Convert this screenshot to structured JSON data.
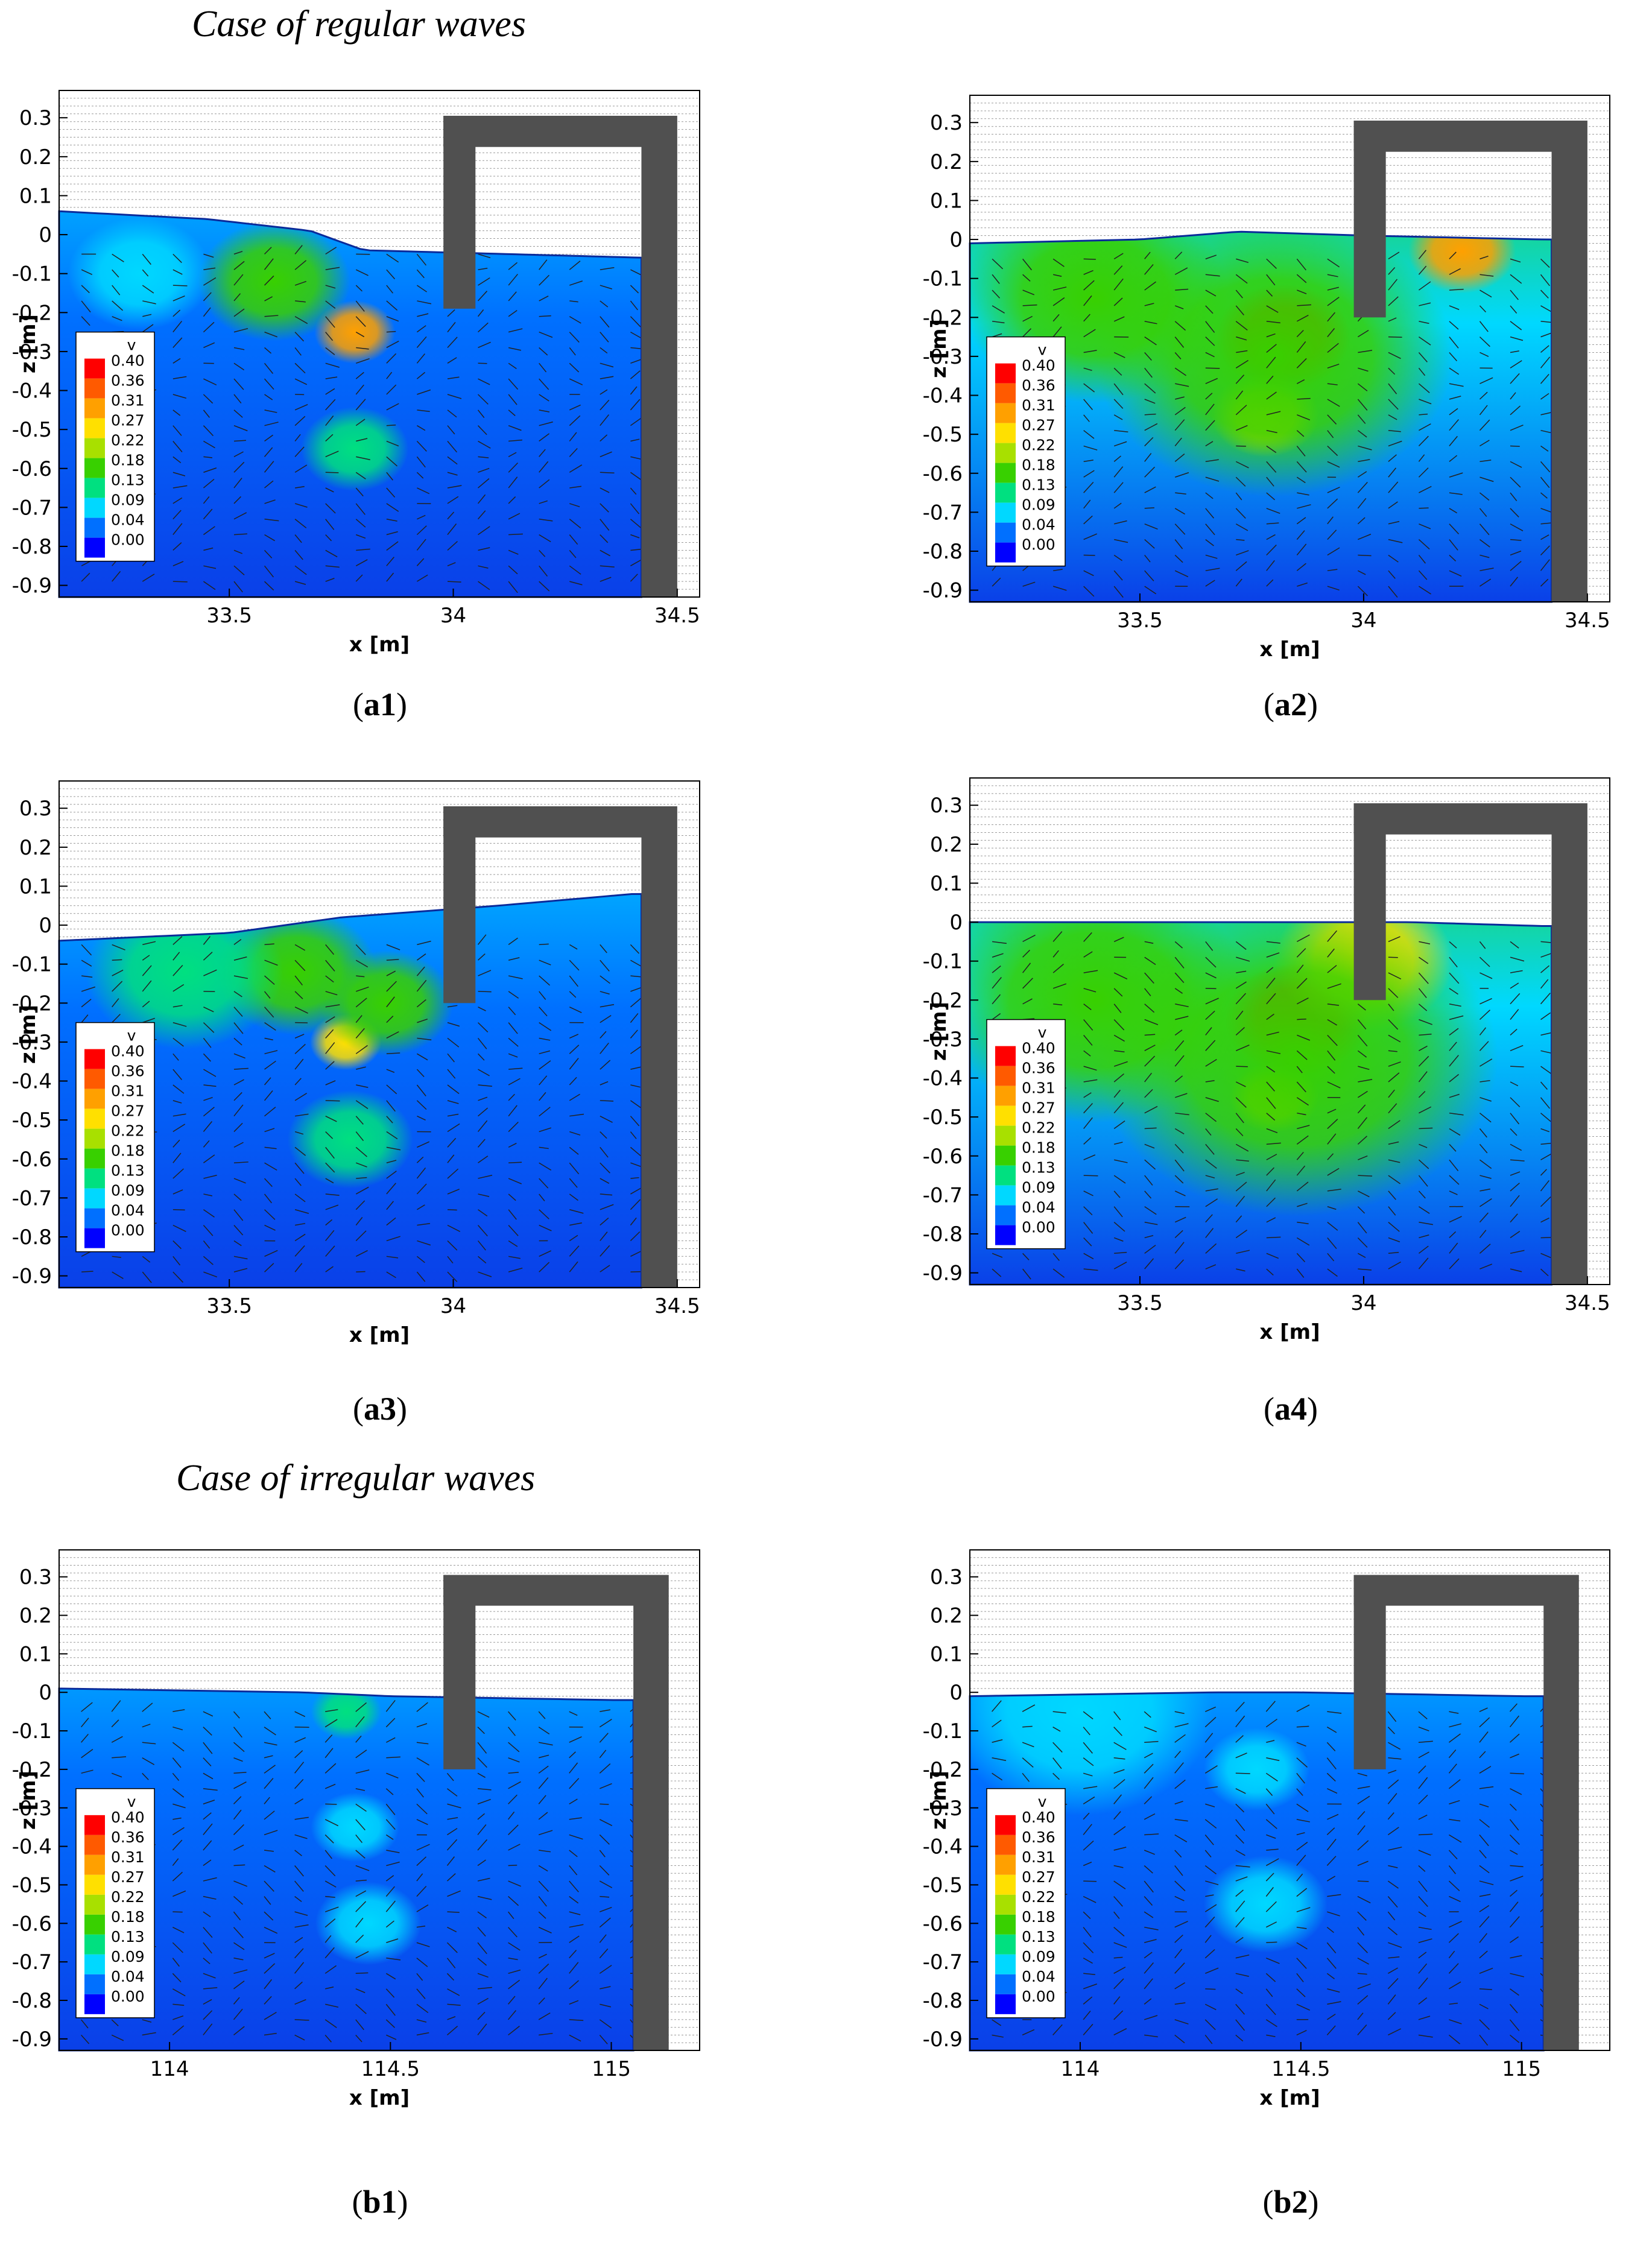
{
  "sections": [
    {
      "title": "Case of regular waves"
    },
    {
      "title": "Case of irregular waves"
    }
  ],
  "legend": {
    "title": "v",
    "levels": [
      "0.40",
      "0.36",
      "0.31",
      "0.27",
      "0.22",
      "0.18",
      "0.13",
      "0.09",
      "0.04",
      "0.00"
    ],
    "colors": [
      "#ff0000",
      "#ff5a00",
      "#ffa000",
      "#ffe000",
      "#a8e000",
      "#38d000",
      "#00e080",
      "#00d8ff",
      "#0070ff",
      "#0000ff"
    ]
  },
  "colors": {
    "structure": "#505050",
    "deep_water": "#0a40e8",
    "grid": "#9a9a9a"
  },
  "panels": [
    {
      "id": "a1",
      "caption_letter": "a",
      "caption_num": "1"
    },
    {
      "id": "a2",
      "caption_letter": "a",
      "caption_num": "2"
    },
    {
      "id": "a3",
      "caption_letter": "a",
      "caption_num": "3"
    },
    {
      "id": "a4",
      "caption_letter": "a",
      "caption_num": "4"
    },
    {
      "id": "b1",
      "caption_letter": "b",
      "caption_num": "1"
    },
    {
      "id": "b2",
      "caption_letter": "b",
      "caption_num": "2"
    }
  ],
  "chart_data": [
    {
      "id": "a1",
      "type": "heatmap",
      "xlabel": "x [m]",
      "ylabel": "z [m]",
      "xlim": [
        33.12,
        34.55
      ],
      "ylim": [
        -0.93,
        0.37
      ],
      "xticks": [
        {
          "v": 33.5,
          "label": "33.5"
        },
        {
          "v": 34,
          "label": "34"
        },
        {
          "v": 34.5,
          "label": "34.5"
        }
      ],
      "yticks": [
        0.3,
        0.2,
        0.1,
        0,
        -0.1,
        -0.2,
        -0.3,
        -0.4,
        -0.5,
        -0.6,
        -0.7,
        -0.8,
        -0.9
      ],
      "surface": [
        [
          33.12,
          0.06
        ],
        [
          33.45,
          0.04
        ],
        [
          33.68,
          0.01
        ],
        [
          33.8,
          -0.04
        ],
        [
          34.45,
          -0.06
        ]
      ],
      "wall_tip": -0.19,
      "back_wall_x": [
        34.42,
        34.5
      ],
      "hotspots": [
        {
          "x": 33.78,
          "z": -0.25,
          "r": 0.09,
          "level": 0.3
        },
        {
          "x": 33.6,
          "z": -0.12,
          "r": 0.17,
          "level": 0.19
        },
        {
          "x": 33.78,
          "z": -0.55,
          "r": 0.12,
          "level": 0.13
        },
        {
          "x": 33.3,
          "z": -0.1,
          "r": 0.16,
          "level": 0.11
        }
      ]
    },
    {
      "id": "a2",
      "type": "heatmap",
      "xlabel": "x [m]",
      "ylabel": "z [m]",
      "xlim": [
        33.12,
        34.55
      ],
      "ylim": [
        -0.93,
        0.37
      ],
      "xticks": [
        {
          "v": 33.5,
          "label": "33.5"
        },
        {
          "v": 34,
          "label": "34"
        },
        {
          "v": 34.5,
          "label": "34.5"
        }
      ],
      "yticks": [
        0.3,
        0.2,
        0.1,
        0,
        -0.1,
        -0.2,
        -0.3,
        -0.4,
        -0.5,
        -0.6,
        -0.7,
        -0.8,
        -0.9
      ],
      "surface": [
        [
          33.12,
          -0.01
        ],
        [
          33.5,
          0.0
        ],
        [
          33.72,
          0.02
        ],
        [
          34.0,
          0.01
        ],
        [
          34.4,
          0.0
        ]
      ],
      "wall_tip": -0.2,
      "back_wall_x": [
        34.42,
        34.5
      ],
      "hotspots": [
        {
          "x": 33.82,
          "z": -0.25,
          "r": 0.15,
          "level": 0.4
        },
        {
          "x": 34.22,
          "z": -0.03,
          "r": 0.12,
          "level": 0.3
        },
        {
          "x": 33.78,
          "z": -0.45,
          "r": 0.12,
          "level": 0.26
        },
        {
          "x": 33.8,
          "z": -0.3,
          "r": 0.4,
          "level": 0.18
        },
        {
          "x": 33.4,
          "z": -0.15,
          "r": 0.3,
          "level": 0.17
        }
      ]
    },
    {
      "id": "a3",
      "type": "heatmap",
      "xlabel": "x [m]",
      "ylabel": "z [m]",
      "xlim": [
        33.12,
        34.55
      ],
      "ylim": [
        -0.93,
        0.37
      ],
      "xticks": [
        {
          "v": 33.5,
          "label": "33.5"
        },
        {
          "v": 34,
          "label": "34"
        },
        {
          "v": 34.5,
          "label": "34.5"
        }
      ],
      "yticks": [
        0.3,
        0.2,
        0.1,
        0,
        -0.1,
        -0.2,
        -0.3,
        -0.4,
        -0.5,
        -0.6,
        -0.7,
        -0.8,
        -0.9
      ],
      "surface": [
        [
          33.12,
          -0.04
        ],
        [
          33.5,
          -0.02
        ],
        [
          33.75,
          0.02
        ],
        [
          34.1,
          0.05
        ],
        [
          34.4,
          0.08
        ]
      ],
      "wall_tip": -0.2,
      "back_wall_x": [
        34.42,
        34.5
      ],
      "hotspots": [
        {
          "x": 33.76,
          "z": -0.3,
          "r": 0.08,
          "level": 0.28
        },
        {
          "x": 33.65,
          "z": -0.12,
          "r": 0.18,
          "level": 0.18
        },
        {
          "x": 33.85,
          "z": -0.2,
          "r": 0.15,
          "level": 0.17
        },
        {
          "x": 33.77,
          "z": -0.55,
          "r": 0.14,
          "level": 0.15
        },
        {
          "x": 33.4,
          "z": -0.12,
          "r": 0.22,
          "level": 0.14
        }
      ]
    },
    {
      "id": "a4",
      "type": "heatmap",
      "xlabel": "x [m]",
      "ylabel": "z [m]",
      "xlim": [
        33.12,
        34.55
      ],
      "ylim": [
        -0.93,
        0.37
      ],
      "xticks": [
        {
          "v": 33.5,
          "label": "33.5"
        },
        {
          "v": 34,
          "label": "34"
        },
        {
          "v": 34.5,
          "label": "34.5"
        }
      ],
      "yticks": [
        0.3,
        0.2,
        0.1,
        0,
        -0.1,
        -0.2,
        -0.3,
        -0.4,
        -0.5,
        -0.6,
        -0.7,
        -0.8,
        -0.9
      ],
      "surface": [
        [
          33.12,
          0.0
        ],
        [
          33.5,
          0.0
        ],
        [
          33.75,
          0.0
        ],
        [
          34.1,
          0.0
        ],
        [
          34.4,
          -0.01
        ]
      ],
      "wall_tip": -0.2,
      "back_wall_x": [
        34.42,
        34.5
      ],
      "hotspots": [
        {
          "x": 33.85,
          "z": -0.25,
          "r": 0.16,
          "level": 0.4
        },
        {
          "x": 33.8,
          "z": -0.45,
          "r": 0.1,
          "level": 0.28
        },
        {
          "x": 34.0,
          "z": -0.1,
          "r": 0.2,
          "level": 0.27
        },
        {
          "x": 33.85,
          "z": -0.35,
          "r": 0.45,
          "level": 0.18
        },
        {
          "x": 33.4,
          "z": -0.2,
          "r": 0.35,
          "level": 0.16
        }
      ]
    },
    {
      "id": "b1",
      "type": "heatmap",
      "xlabel": "x [m]",
      "ylabel": "z [m]",
      "xlim": [
        113.75,
        115.2
      ],
      "ylim": [
        -0.93,
        0.37
      ],
      "xticks": [
        {
          "v": 114,
          "label": "114"
        },
        {
          "v": 114.5,
          "label": "114.5"
        },
        {
          "v": 115,
          "label": "115"
        }
      ],
      "yticks": [
        0.3,
        0.2,
        0.1,
        0,
        -0.1,
        -0.2,
        -0.3,
        -0.4,
        -0.5,
        -0.6,
        -0.7,
        -0.8,
        -0.9
      ],
      "surface": [
        [
          113.75,
          0.01
        ],
        [
          114.3,
          0.0
        ],
        [
          114.5,
          -0.01
        ],
        [
          115.0,
          -0.02
        ]
      ],
      "wall_tip": -0.2,
      "back_wall_x": [
        115.05,
        115.13
      ],
      "hotspots": [
        {
          "x": 114.4,
          "z": -0.05,
          "r": 0.08,
          "level": 0.15
        },
        {
          "x": 114.42,
          "z": -0.35,
          "r": 0.1,
          "level": 0.1
        },
        {
          "x": 114.45,
          "z": -0.6,
          "r": 0.12,
          "level": 0.08
        }
      ]
    },
    {
      "id": "b2",
      "type": "heatmap",
      "xlabel": "x [m]",
      "ylabel": "z [m]",
      "xlim": [
        113.75,
        115.2
      ],
      "ylim": [
        -0.93,
        0.37
      ],
      "xticks": [
        {
          "v": 114,
          "label": "114"
        },
        {
          "v": 114.5,
          "label": "114.5"
        },
        {
          "v": 115,
          "label": "115"
        }
      ],
      "yticks": [
        0.3,
        0.2,
        0.1,
        0,
        -0.1,
        -0.2,
        -0.3,
        -0.4,
        -0.5,
        -0.6,
        -0.7,
        -0.8,
        -0.9
      ],
      "surface": [
        [
          113.75,
          -0.01
        ],
        [
          114.3,
          0.0
        ],
        [
          114.5,
          0.0
        ],
        [
          115.0,
          -0.01
        ]
      ],
      "wall_tip": -0.2,
      "back_wall_x": [
        115.05,
        115.13
      ],
      "hotspots": [
        {
          "x": 114.0,
          "z": -0.05,
          "r": 0.3,
          "level": 0.1
        },
        {
          "x": 114.4,
          "z": -0.2,
          "r": 0.12,
          "level": 0.09
        },
        {
          "x": 114.42,
          "z": -0.55,
          "r": 0.14,
          "level": 0.08
        }
      ]
    }
  ]
}
